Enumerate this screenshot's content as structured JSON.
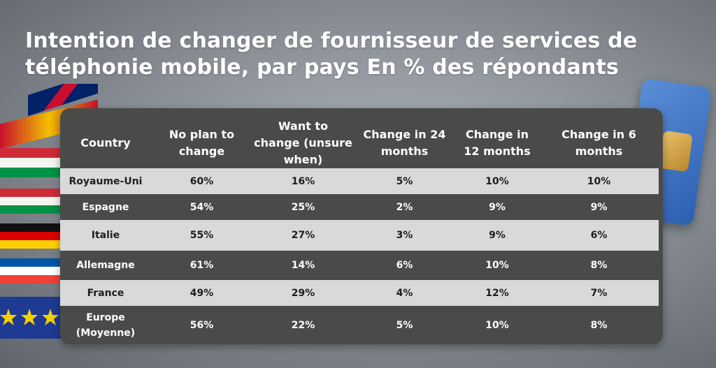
{
  "title": "Intention de changer de fournisseur de services de téléphonie mobile, par pays En % des répondants",
  "colors": {
    "panel": "#4a4b49",
    "light_row": "#d9d9d9",
    "text_light": "#ffffff",
    "text_dark": "#1e1e1e"
  },
  "chart_data": {
    "type": "table",
    "title": "Intention de changer de fournisseur de services de téléphonie mobile, par pays En % des répondants",
    "columns": [
      "Country",
      "No plan to change",
      "Want to change (unsure when)",
      "Change in 24 months",
      "Change in 12 months",
      "Change in 6 months"
    ],
    "rows": [
      {
        "country": "Royaume-Uni",
        "values": [
          "60%",
          "16%",
          "5%",
          "10%",
          "10%"
        ]
      },
      {
        "country": "Espagne",
        "values": [
          "54%",
          "25%",
          "2%",
          "9%",
          "9%"
        ]
      },
      {
        "country": "Italie",
        "values": [
          "55%",
          "27%",
          "3%",
          "9%",
          "6%"
        ]
      },
      {
        "country": "Allemagne",
        "values": [
          "61%",
          "14%",
          "6%",
          "10%",
          "8%"
        ]
      },
      {
        "country": "France",
        "values": [
          "49%",
          "29%",
          "4%",
          "12%",
          "7%"
        ]
      },
      {
        "country": "Europe (Moyenne)",
        "values": [
          "56%",
          "22%",
          "5%",
          "10%",
          "8%"
        ]
      }
    ]
  }
}
